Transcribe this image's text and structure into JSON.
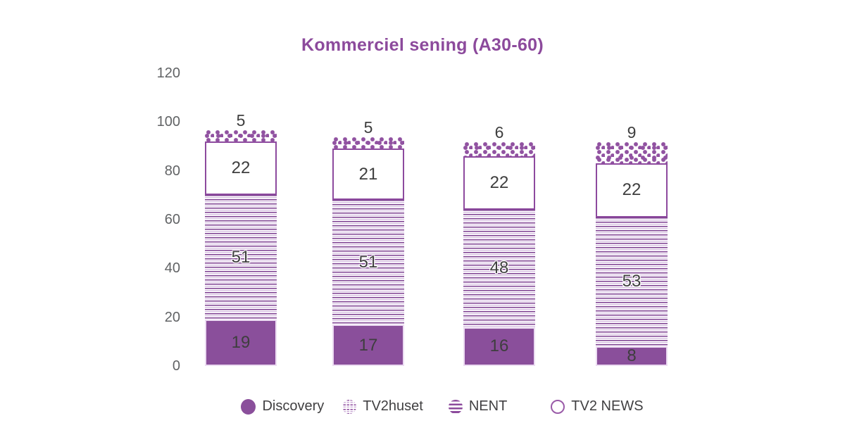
{
  "title": "Kommerciel sening (A30-60)",
  "legend": {
    "items": [
      {
        "label": "Discovery",
        "icon": "solid-circle"
      },
      {
        "label": "TV2huset",
        "icon": "dashed-circle"
      },
      {
        "label": "NENT",
        "icon": "striped-circle"
      },
      {
        "label": "TV2 NEWS",
        "icon": "outline-circle"
      }
    ]
  },
  "colors": {
    "title_purple": "#8c4a9c",
    "bar_solid_purple": "#8a4f9b",
    "dot_purple": "#9152a1",
    "stripe_dark": "#7c3e90",
    "stripe_light": "#d9c4e3",
    "outline_segment_border": "#8d4a9e",
    "solid_segment_light_border": "#ecdcf2",
    "value_text": "#3e3e3e",
    "axis_text": "#616365",
    "background": "#ffffff"
  },
  "chart_data": {
    "type": "bar",
    "stacked": true,
    "title": "Kommerciel sening (A30-60)",
    "categories": [
      "",
      "",
      "",
      ""
    ],
    "series": [
      {
        "name": "Discovery",
        "pattern": "solid",
        "values": [
          19,
          17,
          16,
          8
        ],
        "value_label_position": "inside"
      },
      {
        "name": "TV2huset",
        "pattern": "stripes",
        "values": [
          51,
          51,
          48,
          53
        ],
        "value_label_position": "inside"
      },
      {
        "name": "TV2 NEWS",
        "pattern": "outline",
        "values": [
          22,
          21,
          22,
          22
        ],
        "value_label_position": "inside"
      },
      {
        "name": "NENT",
        "pattern": "dots",
        "values": [
          5,
          5,
          6,
          9
        ],
        "value_label_position": "above"
      }
    ],
    "stack_order": "bottom-to-top as listed",
    "legend_order": [
      "Discovery",
      "TV2huset",
      "NENT",
      "TV2 NEWS"
    ],
    "y_ticks": [
      0,
      20,
      40,
      60,
      80,
      100,
      120
    ],
    "ylim": [
      0,
      120
    ],
    "grid": false,
    "legend_position": "bottom",
    "x_axis_labels_visible": false
  }
}
